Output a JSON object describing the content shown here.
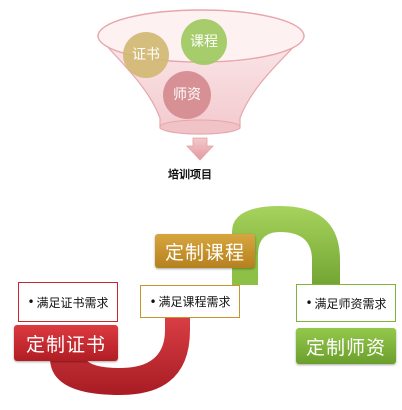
{
  "funnel": {
    "circles": [
      {
        "label": "证书",
        "color": "#d1b873"
      },
      {
        "label": "课程",
        "color": "#9ec95f"
      },
      {
        "label": "师资",
        "color": "#d48b8f"
      }
    ],
    "caption": "培训项目"
  },
  "flow": {
    "steps": [
      {
        "title": "定制证书",
        "need": "满足证书需求",
        "color": "#c8262e"
      },
      {
        "title": "定制课程",
        "need": "满足课程需求",
        "color": "#c7952a"
      },
      {
        "title": "定制师资",
        "need": "满足师资需求",
        "color": "#7db43a"
      }
    ],
    "colors": {
      "red": "#c8262e",
      "gold": "#c7952a",
      "green": "#7db43a"
    }
  }
}
